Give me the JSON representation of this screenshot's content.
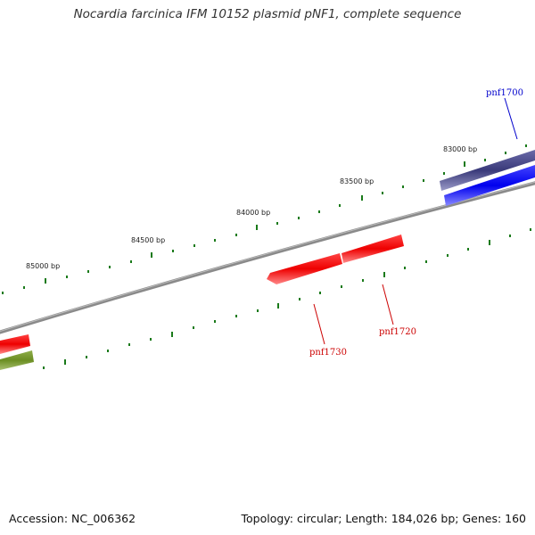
{
  "title": "Nocardia farcinica IFM 10152 plasmid pNF1, complete sequence",
  "footer": {
    "accession": "Accession: NC_006362",
    "stats": "Topology: circular; Length: 184,026 bp; Genes: 160"
  },
  "ruler": {
    "labels": [
      "83000 bp",
      "83500 bp",
      "84000 bp",
      "84500 bp",
      "85000 bp"
    ]
  },
  "genes": [
    {
      "label": "pnf1700",
      "color": "#0000cc"
    },
    {
      "label": "pnf1720",
      "color": "#cc0000"
    },
    {
      "label": "pnf1730",
      "color": "#cc0000"
    }
  ],
  "colors": {
    "backbone": "#888888",
    "ticks": "#1a7a1a",
    "forward_gene_dark": "#3a3a7a",
    "forward_gene_blue": "#0000ee",
    "reverse_gene_red": "#ee0000",
    "reverse_gene_olive": "#6b8e23"
  }
}
